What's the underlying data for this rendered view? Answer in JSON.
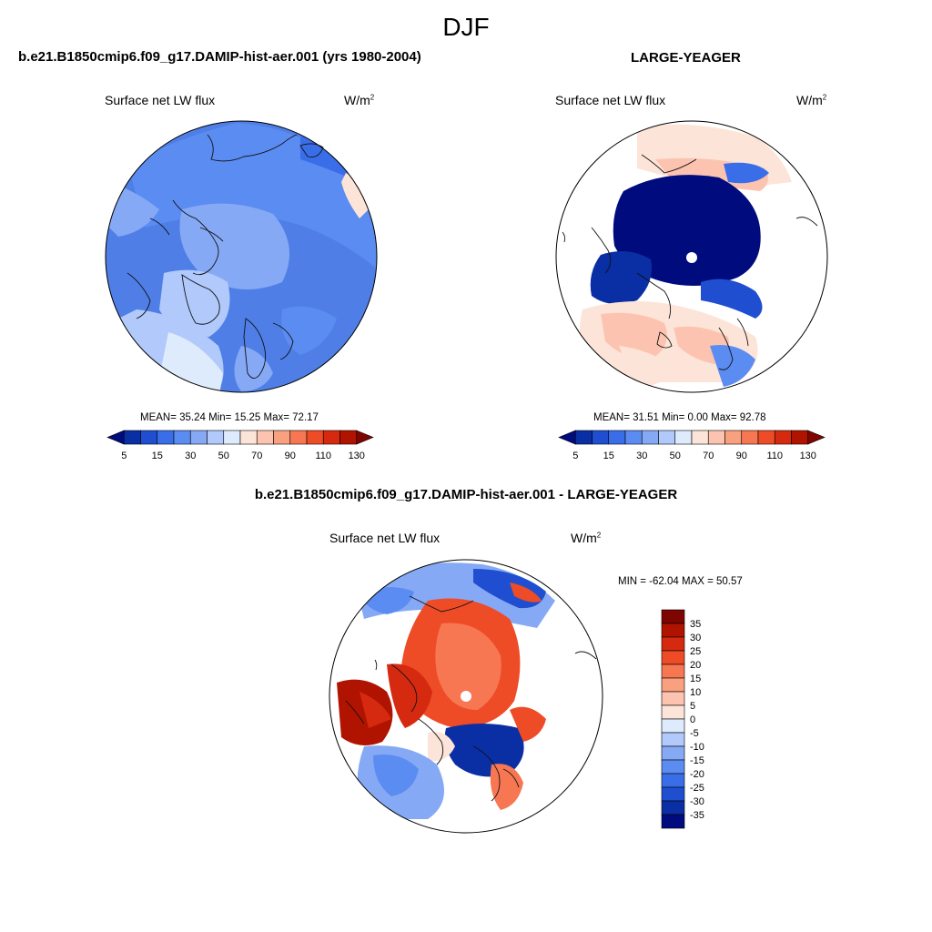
{
  "season": "DJF",
  "panels": [
    {
      "title": "b.e21.B1850cmip6.f09_g17.DAMIP-hist-aer.001 (yrs 1980-2004)",
      "variable": "Surface net LW flux",
      "units": "W/m",
      "units_sup": "2",
      "stats": "MEAN=  35.24  Min=  15.25  Max=  72.17"
    },
    {
      "title": "LARGE-YEAGER",
      "variable": "Surface net LW flux",
      "units": "W/m",
      "units_sup": "2",
      "stats": "MEAN=  31.51  Min=    0.00  Max=  92.78"
    },
    {
      "title": "b.e21.B1850cmip6.f09_g17.DAMIP-hist-aer.001 - LARGE-YEAGER",
      "variable": "Surface net LW flux",
      "units": "W/m",
      "units_sup": "2",
      "stats": "MIN = -62.04 MAX =  50.57"
    }
  ],
  "colorbar_abs": {
    "colors": [
      "#000c7d",
      "#0a2ea3",
      "#1f4fd0",
      "#3a6ee9",
      "#5b8cf2",
      "#86a9f5",
      "#b1c9fb",
      "#deebfc",
      "#fde4d8",
      "#fcc4b0",
      "#f9a07e",
      "#f67752",
      "#ee4c26",
      "#d52a0f",
      "#b01400",
      "#7f0500"
    ],
    "ticks": [
      "5",
      "15",
      "30",
      "50",
      "70",
      "90",
      "110",
      "130"
    ]
  },
  "colorbar_diff": {
    "colors": [
      "#7f0500",
      "#b01400",
      "#d52a0f",
      "#ee4c26",
      "#f67752",
      "#f9a07e",
      "#fcc4b0",
      "#fde4d8",
      "#deebfc",
      "#b1c9fb",
      "#86a9f5",
      "#5b8cf2",
      "#3a6ee9",
      "#1f4fd0",
      "#0a2ea3",
      "#000c7d"
    ],
    "ticks": [
      "35",
      "30",
      "25",
      "20",
      "15",
      "10",
      "5",
      "0",
      "-5",
      "-10",
      "-15",
      "-20",
      "-25",
      "-30",
      "-35"
    ]
  },
  "colors": {
    "ocean_blue": "#4f7fe6",
    "mid_blue": "#6f98ee",
    "pale_blue": "#b4cbf6",
    "deep_blue": "#00118e",
    "salmon": "#fcc4b0",
    "red": "#e8501f",
    "dark_red": "#b01400"
  }
}
